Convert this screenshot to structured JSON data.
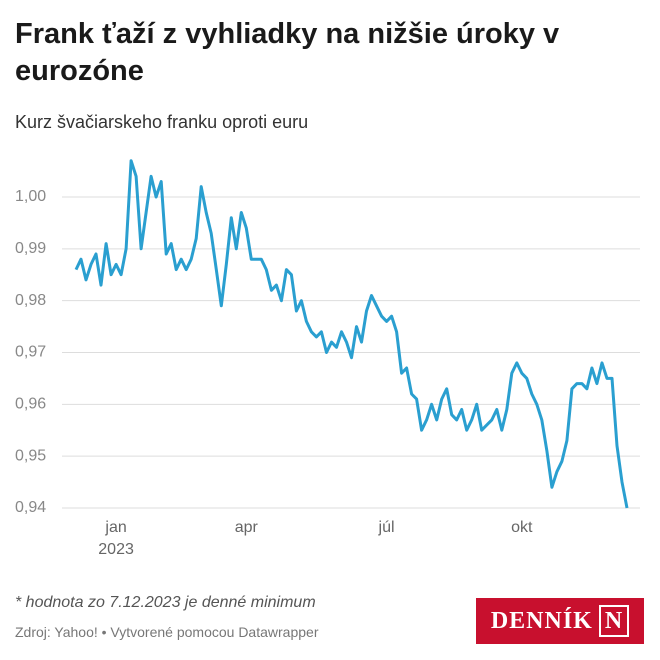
{
  "chart_data": {
    "type": "line",
    "title": "Frank ťaží z vyhliadky na nižšie úroky v eurozóne",
    "subtitle": "Kurz švačiarskeho franku oproti euru",
    "note": "* hodnota zo 7.12.2023 je denné minimum",
    "source": "Zdroj: Yahoo! • Vytvorené pomocou Datawrapper",
    "logo": "DENNÍK",
    "logo_mark": "N",
    "year_label": "2023",
    "categories": [
      null,
      null,
      null,
      null,
      null,
      null,
      null,
      null,
      "jan",
      null,
      null,
      null,
      null,
      null,
      null,
      null,
      null,
      null,
      null,
      null,
      null,
      null,
      null,
      null,
      null,
      null,
      null,
      null,
      null,
      null,
      null,
      null,
      null,
      null,
      "apr",
      null,
      null,
      null,
      null,
      null,
      null,
      null,
      null,
      null,
      null,
      null,
      null,
      null,
      null,
      null,
      null,
      null,
      null,
      null,
      null,
      null,
      null,
      null,
      null,
      null,
      null,
      null,
      "júl",
      null,
      null,
      null,
      null,
      null,
      null,
      null,
      null,
      null,
      null,
      null,
      null,
      null,
      null,
      null,
      null,
      null,
      null,
      null,
      null,
      null,
      null,
      null,
      null,
      null,
      null,
      "okt",
      null,
      null,
      null,
      null,
      null,
      null,
      null,
      null,
      null,
      null,
      null,
      null,
      null,
      null,
      null,
      null,
      null,
      null,
      null,
      null,
      null
    ],
    "series": [
      {
        "color": "#2a9fd0",
        "values": [
          0.986,
          0.988,
          0.984,
          0.987,
          0.989,
          0.983,
          0.991,
          0.985,
          0.987,
          0.985,
          0.99,
          1.007,
          1.004,
          0.99,
          0.997,
          1.004,
          1.0,
          1.003,
          0.989,
          0.991,
          0.986,
          0.988,
          0.986,
          0.988,
          0.992,
          1.002,
          0.997,
          0.993,
          0.986,
          0.979,
          0.987,
          0.996,
          0.99,
          0.997,
          0.994,
          0.988,
          0.988,
          0.988,
          0.986,
          0.982,
          0.983,
          0.98,
          0.986,
          0.985,
          0.978,
          0.98,
          0.976,
          0.974,
          0.973,
          0.974,
          0.97,
          0.972,
          0.971,
          0.974,
          0.972,
          0.969,
          0.975,
          0.972,
          0.978,
          0.981,
          0.979,
          0.977,
          0.976,
          0.977,
          0.974,
          0.966,
          0.967,
          0.962,
          0.961,
          0.955,
          0.957,
          0.96,
          0.957,
          0.961,
          0.963,
          0.958,
          0.957,
          0.959,
          0.955,
          0.957,
          0.96,
          0.955,
          0.956,
          0.957,
          0.959,
          0.955,
          0.959,
          0.966,
          0.968,
          0.966,
          0.965,
          0.962,
          0.96,
          0.957,
          0.951,
          0.944,
          0.947,
          0.949,
          0.953,
          0.963,
          0.964,
          0.964,
          0.963,
          0.967,
          0.964,
          0.968,
          0.965,
          0.965,
          0.952,
          0.945,
          0.94
        ]
      }
    ],
    "ylim": [
      0.94,
      1.008
    ],
    "yticks": [
      {
        "value": 0.94,
        "label": "0,94"
      },
      {
        "value": 0.95,
        "label": "0,95"
      },
      {
        "value": 0.96,
        "label": "0,96"
      },
      {
        "value": 0.97,
        "label": "0,97"
      },
      {
        "value": 0.98,
        "label": "0,98"
      },
      {
        "value": 0.99,
        "label": "0,99"
      },
      {
        "value": 1.0,
        "label": "1,00"
      }
    ],
    "grid": true
  }
}
